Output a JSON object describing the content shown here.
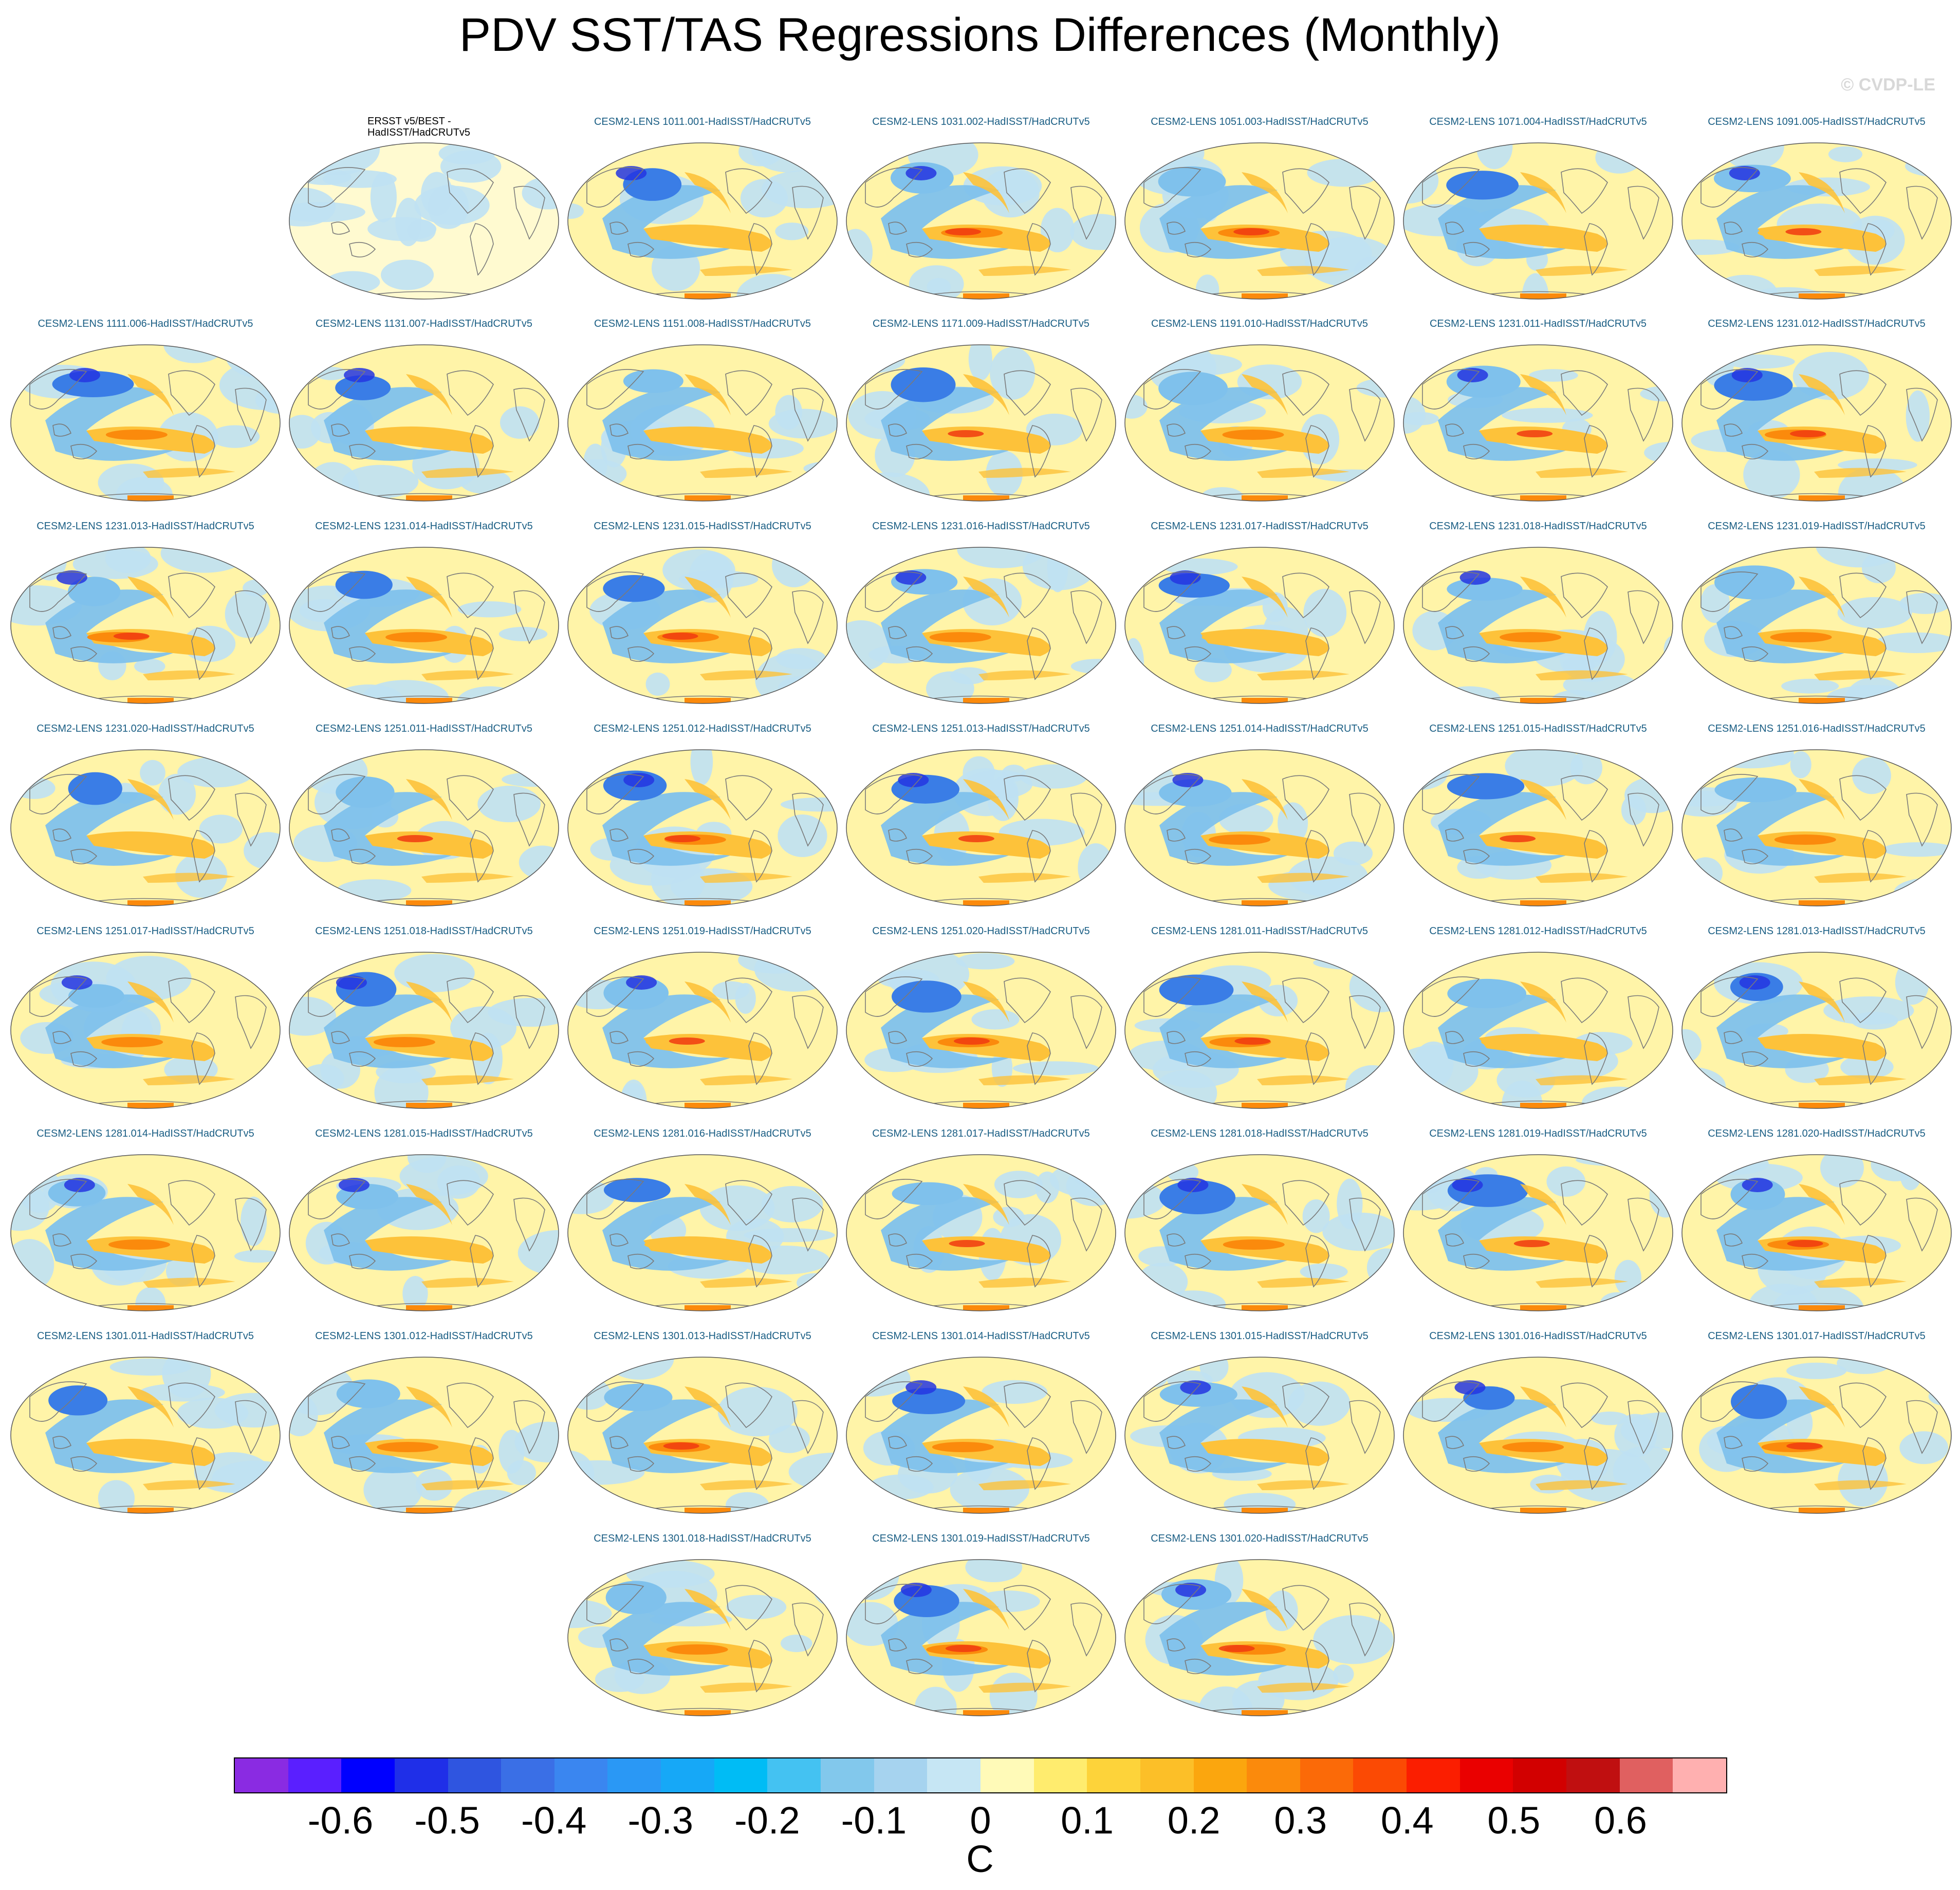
{
  "title": "PDV SST/TAS Regressions Differences (Monthly)",
  "copyright": "© CVDP-LE",
  "observation_panel": {
    "title": "ERSST v5/BEST -\nHadISST/HadCRUTv5"
  },
  "panel_titles": [
    "CESM2-LENS 1011.001-HadISST/HadCRUTv5",
    "CESM2-LENS 1031.002-HadISST/HadCRUTv5",
    "CESM2-LENS 1051.003-HadISST/HadCRUTv5",
    "CESM2-LENS 1071.004-HadISST/HadCRUTv5",
    "CESM2-LENS 1091.005-HadISST/HadCRUTv5",
    "CESM2-LENS 1111.006-HadISST/HadCRUTv5",
    "CESM2-LENS 1131.007-HadISST/HadCRUTv5",
    "CESM2-LENS 1151.008-HadISST/HadCRUTv5",
    "CESM2-LENS 1171.009-HadISST/HadCRUTv5",
    "CESM2-LENS 1191.010-HadISST/HadCRUTv5",
    "CESM2-LENS 1231.011-HadISST/HadCRUTv5",
    "CESM2-LENS 1231.012-HadISST/HadCRUTv5",
    "CESM2-LENS 1231.013-HadISST/HadCRUTv5",
    "CESM2-LENS 1231.014-HadISST/HadCRUTv5",
    "CESM2-LENS 1231.015-HadISST/HadCRUTv5",
    "CESM2-LENS 1231.016-HadISST/HadCRUTv5",
    "CESM2-LENS 1231.017-HadISST/HadCRUTv5",
    "CESM2-LENS 1231.018-HadISST/HadCRUTv5",
    "CESM2-LENS 1231.019-HadISST/HadCRUTv5",
    "CESM2-LENS 1231.020-HadISST/HadCRUTv5",
    "CESM2-LENS 1251.011-HadISST/HadCRUTv5",
    "CESM2-LENS 1251.012-HadISST/HadCRUTv5",
    "CESM2-LENS 1251.013-HadISST/HadCRUTv5",
    "CESM2-LENS 1251.014-HadISST/HadCRUTv5",
    "CESM2-LENS 1251.015-HadISST/HadCRUTv5",
    "CESM2-LENS 1251.016-HadISST/HadCRUTv5",
    "CESM2-LENS 1251.017-HadISST/HadCRUTv5",
    "CESM2-LENS 1251.018-HadISST/HadCRUTv5",
    "CESM2-LENS 1251.019-HadISST/HadCRUTv5",
    "CESM2-LENS 1251.020-HadISST/HadCRUTv5",
    "CESM2-LENS 1281.011-HadISST/HadCRUTv5",
    "CESM2-LENS 1281.012-HadISST/HadCRUTv5",
    "CESM2-LENS 1281.013-HadISST/HadCRUTv5",
    "CESM2-LENS 1281.014-HadISST/HadCRUTv5",
    "CESM2-LENS 1281.015-HadISST/HadCRUTv5",
    "CESM2-LENS 1281.016-HadISST/HadCRUTv5",
    "CESM2-LENS 1281.017-HadISST/HadCRUTv5",
    "CESM2-LENS 1281.018-HadISST/HadCRUTv5",
    "CESM2-LENS 1281.019-HadISST/HadCRUTv5",
    "CESM2-LENS 1281.020-HadISST/HadCRUTv5",
    "CESM2-LENS 1301.011-HadISST/HadCRUTv5",
    "CESM2-LENS 1301.012-HadISST/HadCRUTv5",
    "CESM2-LENS 1301.013-HadISST/HadCRUTv5",
    "CESM2-LENS 1301.014-HadISST/HadCRUTv5",
    "CESM2-LENS 1301.015-HadISST/HadCRUTv5",
    "CESM2-LENS 1301.016-HadISST/HadCRUTv5",
    "CESM2-LENS 1301.017-HadISST/HadCRUTv5",
    "CESM2-LENS 1301.018-HadISST/HadCRUTv5",
    "CESM2-LENS 1301.019-HadISST/HadCRUTv5",
    "CESM2-LENS 1301.020-HadISST/HadCRUTv5"
  ],
  "colorbar": {
    "unit": "C",
    "colors": [
      "#8a2be2",
      "#5a1fff",
      "#0000ff",
      "#1f2fe8",
      "#2f55e0",
      "#3a6fe6",
      "#3a86f0",
      "#2a98f5",
      "#16a8f7",
      "#00bcf5",
      "#44c2f2",
      "#82c8ec",
      "#a6d3ef",
      "#c6e6f4",
      "#fffab8",
      "#ffec6e",
      "#fdd33a",
      "#fcbf28",
      "#fba60e",
      "#fb8a0c",
      "#fb6a08",
      "#fb4a04",
      "#fb1e00",
      "#ea0000",
      "#d20000",
      "#c00f10",
      "#e06060",
      "#ffb0b0"
    ],
    "labels": [
      "-0.6",
      "-0.5",
      "-0.4",
      "-0.3",
      "-0.2",
      "-0.1",
      "0",
      "0.1",
      "0.2",
      "0.3",
      "0.4",
      "0.5",
      "0.6"
    ]
  }
}
